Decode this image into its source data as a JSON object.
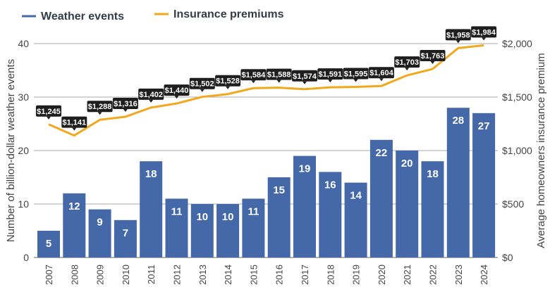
{
  "chart_data": {
    "type": "bar",
    "categories": [
      "2007",
      "2008",
      "2009",
      "2010",
      "2011",
      "2012",
      "2013",
      "2014",
      "2015",
      "2016",
      "2017",
      "2018",
      "2019",
      "2020",
      "2021",
      "2022",
      "2023",
      "2024"
    ],
    "series": [
      {
        "name": "Weather events",
        "type": "bar",
        "axis": "left",
        "color": "#4468a8",
        "values": [
          5,
          12,
          9,
          7,
          18,
          11,
          10,
          10,
          11,
          15,
          19,
          16,
          14,
          22,
          20,
          18,
          28,
          27
        ]
      },
      {
        "name": "Insurance premiums",
        "type": "line",
        "axis": "right",
        "color": "#f2a81d",
        "values": [
          1245,
          1141,
          1288,
          1316,
          1402,
          1440,
          1502,
          1528,
          1584,
          1588,
          1574,
          1591,
          1595,
          1604,
          1703,
          1763,
          1958,
          1984
        ],
        "labels": [
          "$1,245",
          "$1,141",
          "$1,288",
          "$1,316",
          "$1,402",
          "$1,440",
          "$1,502",
          "$1,528",
          "$1,584",
          "$1,588",
          "$1,574",
          "$1,591",
          "$1,595",
          "$1,604",
          "$1,703",
          "$1,763",
          "$1,958",
          "$1,984"
        ]
      }
    ],
    "ylabel": "Number of billion-dollar weather events",
    "y2label": "Average homeowners insurance premium",
    "ylim": [
      0,
      40
    ],
    "y2lim": [
      0,
      2000
    ],
    "yticks": [
      "0",
      "10",
      "20",
      "30",
      "40"
    ],
    "y2ticks": [
      "$0",
      "$500",
      "$1,000",
      "$1,500",
      "$2,000"
    ],
    "grid": true,
    "legend_placement": "top-left"
  }
}
